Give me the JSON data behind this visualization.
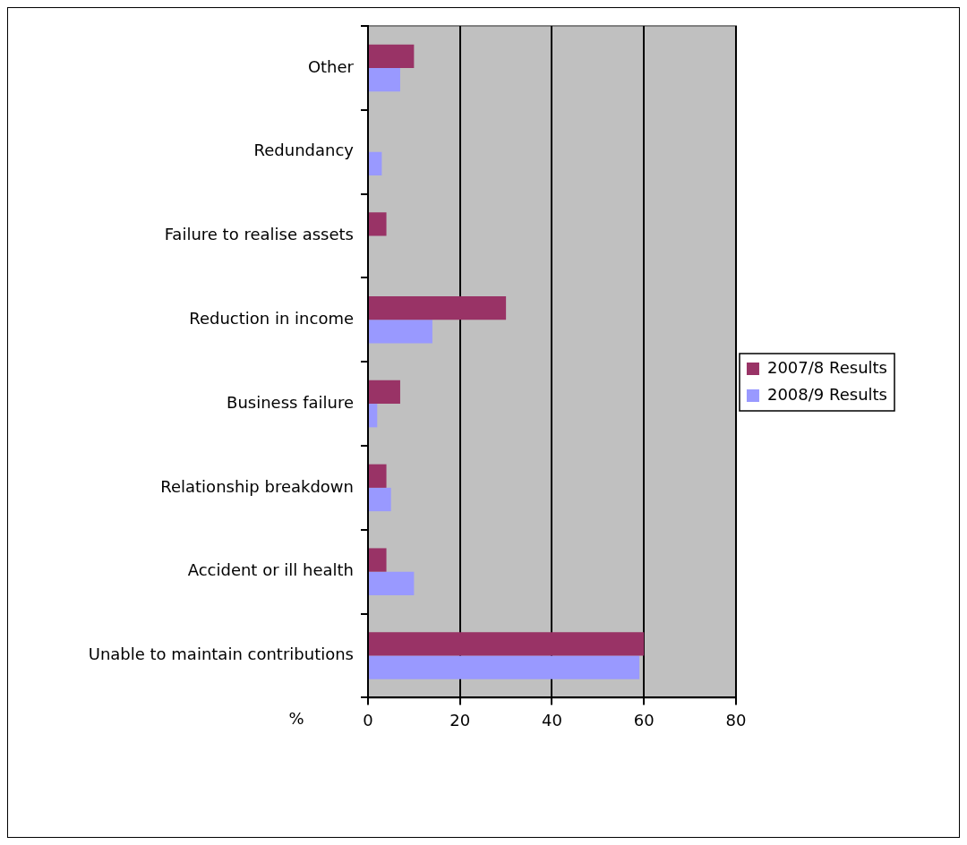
{
  "chart_data": {
    "type": "bar",
    "orientation": "horizontal",
    "xlabel": "%",
    "categories": [
      "Other",
      "Redundancy",
      "Failure to realise assets",
      "Reduction in income",
      "Business failure",
      "Relationship breakdown",
      "Accident or ill health",
      "Unable to maintain contributions"
    ],
    "series": [
      {
        "name": "2007/8 Results",
        "color": "#993366",
        "values": [
          10,
          null,
          4,
          30,
          7,
          4,
          4,
          60
        ]
      },
      {
        "name": "2008/9 Results",
        "color": "#9999ff",
        "values": [
          7,
          3,
          null,
          14,
          2,
          5,
          10,
          59
        ]
      }
    ],
    "xlim": [
      0,
      80
    ],
    "xticks": [
      0,
      20,
      40,
      60,
      80
    ],
    "grid": "x",
    "legend": "right"
  }
}
